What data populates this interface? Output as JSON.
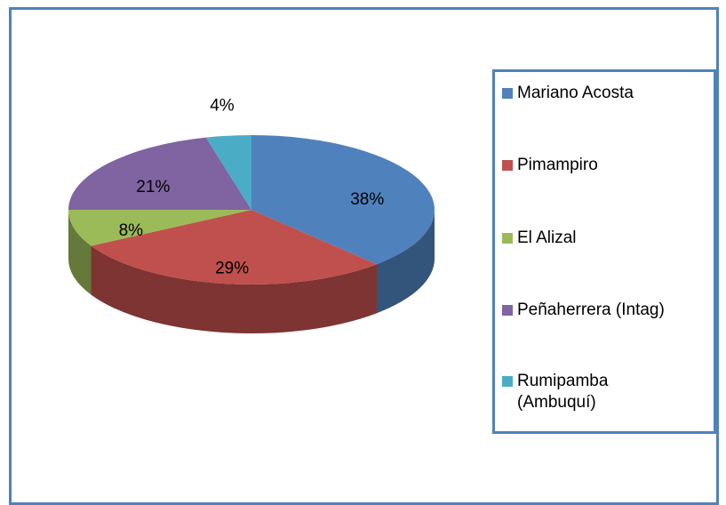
{
  "chart_data": {
    "type": "pie",
    "categories": [
      "Mariano Acosta",
      "Pimampiro",
      "El Alizal",
      "Peñaherrera (Intag)",
      "Rumipamba (Ambuquí)"
    ],
    "values": [
      38,
      29,
      8,
      21,
      4
    ],
    "value_labels": [
      "38%",
      "29%",
      "8%",
      "21%",
      "4%"
    ],
    "colors": [
      "#4f81bd",
      "#c0504d",
      "#9bbb59",
      "#8064a2",
      "#4bacc6"
    ],
    "legend": "right"
  }
}
